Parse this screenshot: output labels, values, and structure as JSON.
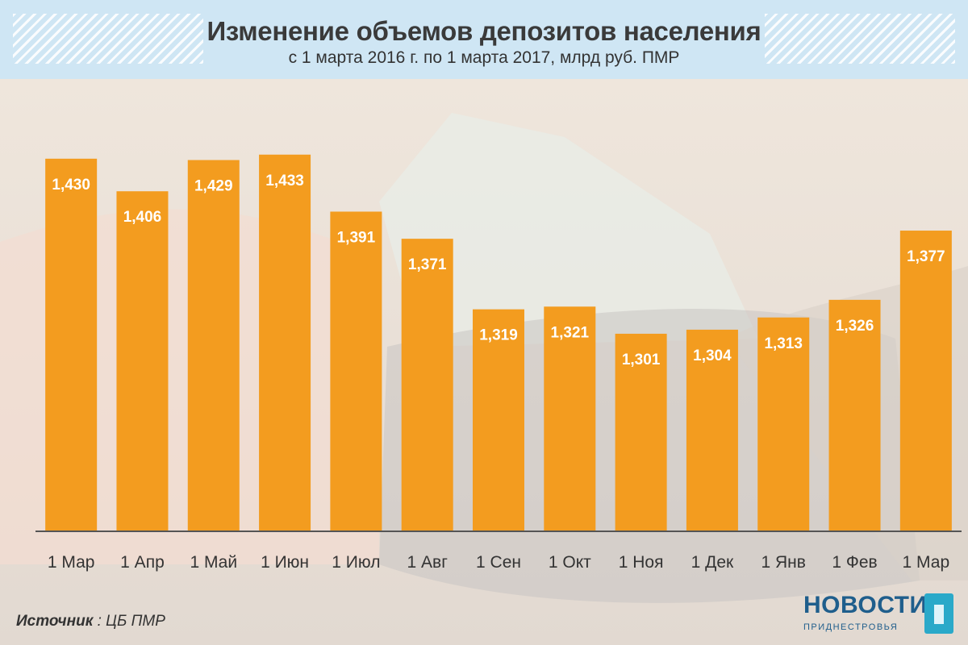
{
  "header": {
    "title": "Изменение объемов депозитов населения",
    "subtitle": "с 1 марта 2016 г. по 1 марта 2017, млрд руб. ПМР"
  },
  "source": {
    "label": "Источник",
    "value": ": ЦБ ПМР"
  },
  "logo": {
    "main": "НОВОСТИ",
    "sub": "ПРИДНЕСТРОВЬЯ"
  },
  "colors": {
    "bar": "#f39c1f",
    "bar_label": "#ffffff",
    "axis_line": "#555555"
  },
  "chart_data": {
    "type": "bar",
    "categories": [
      "1 Мар",
      "1 Апр",
      "1 Май",
      "1 Июн",
      "1 Июл",
      "1 Авг",
      "1 Сен",
      "1 Окт",
      "1 Ноя",
      "1 Дек",
      "1 Янв",
      "1 Фев",
      "1 Мар"
    ],
    "values": [
      1.43,
      1.406,
      1.429,
      1.433,
      1.391,
      1.371,
      1.319,
      1.321,
      1.301,
      1.304,
      1.313,
      1.326,
      1.377
    ],
    "value_labels": [
      "1,430",
      "1,406",
      "1,429",
      "1,433",
      "1,391",
      "1,371",
      "1,319",
      "1,321",
      "1,301",
      "1,304",
      "1,313",
      "1,326",
      "1,377"
    ],
    "ylim": [
      1.156,
      1.44
    ],
    "grid": false,
    "legend": "none"
  }
}
